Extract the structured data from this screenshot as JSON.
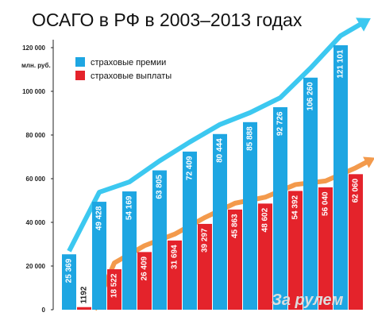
{
  "chart_data": {
    "type": "bar",
    "title": "ОСАГО в РФ в 2003–2013 годах",
    "ylabel": "млн. руб.",
    "ylim": [
      0,
      120000
    ],
    "y_ticks": [
      "0",
      "20 000",
      "40 000",
      "60 000",
      "80 000",
      "100 000",
      "120 000"
    ],
    "grid": false,
    "legend_position": "top-left",
    "series": [
      {
        "name": "страховые премии",
        "color": "#1ea6e2",
        "values": [
          25369,
          49428,
          54169,
          63805,
          72409,
          80444,
          85888,
          92726,
          106260,
          121101
        ],
        "labels": [
          "25 369",
          "49 428",
          "54 169",
          "63 805",
          "72 409",
          "80 444",
          "85 888",
          "92 726",
          "106 260",
          "121 101"
        ]
      },
      {
        "name": "страховые выплаты",
        "color": "#e4232b",
        "values": [
          1192,
          18522,
          26409,
          31694,
          39297,
          45863,
          48602,
          54392,
          56040,
          62060
        ],
        "labels": [
          "1192",
          "18 522",
          "26 409",
          "31 694",
          "39 297",
          "45 863",
          "48 602",
          "54 392",
          "56 040",
          "62 060"
        ]
      }
    ],
    "trend_colors": {
      "premiums": "#3cc8f0",
      "payouts": "#f39a4c"
    },
    "watermark": "За рулем"
  }
}
